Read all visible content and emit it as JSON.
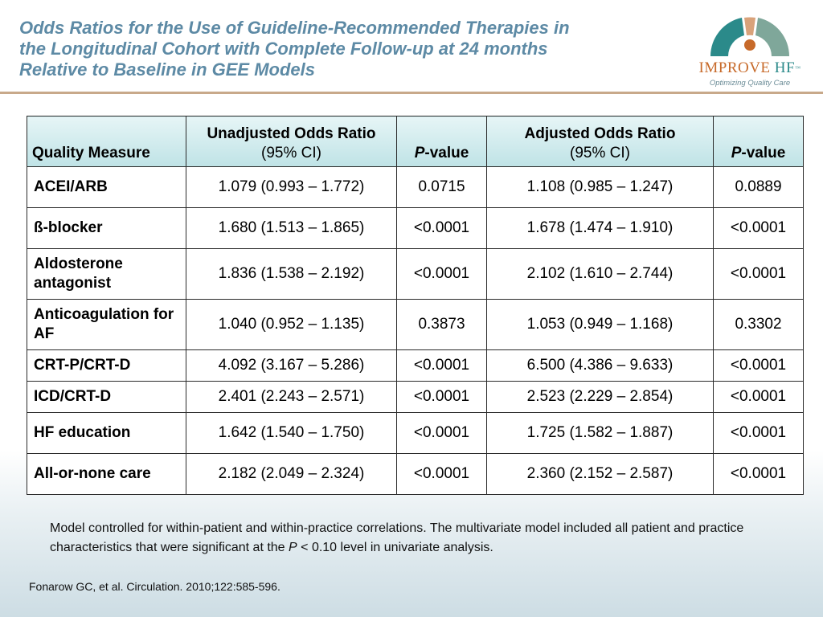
{
  "slide": {
    "title_lines": [
      "Odds Ratios for the Use of Guideline-Recommended Therapies in",
      "the Longitudinal Cohort with Complete Follow-up at 24 months",
      "Relative to Baseline in GEE Models"
    ],
    "title_color": "#5d8aa5",
    "rule_color": "#c8a98a"
  },
  "logo": {
    "brand_main": "IMPROVE",
    "brand_hf": "HF",
    "brand_tm": "™",
    "tagline": "Optimizing Quality Care",
    "colors": {
      "orange": "#c76a2a",
      "teal": "#2b8a8a",
      "green": "#7fa79a"
    }
  },
  "table": {
    "headers": {
      "measure": "Quality Measure",
      "unadj_bold": "Unadjusted Odds Ratio",
      "unadj_ci": "(95% CI)",
      "p_italic": "P",
      "p_rest": "-value",
      "adj_bold": "Adjusted Odds Ratio",
      "adj_ci": "(95% CI)"
    },
    "rows": [
      {
        "measure": "ACEI/ARB",
        "unadj": "1.079 (0.993 – 1.772)",
        "p1": "0.0715",
        "adj": "1.108 (0.985 – 1.247)",
        "p2": "0.0889"
      },
      {
        "measure": "ß-blocker",
        "unadj": "1.680 (1.513 – 1.865)",
        "p1": "<0.0001",
        "adj": "1.678 (1.474 – 1.910)",
        "p2": "<0.0001"
      },
      {
        "measure": "Aldosterone antagonist",
        "unadj": "1.836 (1.538 – 2.192)",
        "p1": "<0.0001",
        "adj": "2.102 (1.610 – 2.744)",
        "p2": "<0.0001"
      },
      {
        "measure": "Anticoagulation for AF",
        "unadj": "1.040 (0.952 – 1.135)",
        "p1": "0.3873",
        "adj": "1.053 (0.949 – 1.168)",
        "p2": "0.3302"
      },
      {
        "measure": "CRT-P/CRT-D",
        "unadj": "4.092 (3.167 – 5.286)",
        "p1": "<0.0001",
        "adj": "6.500 (4.386 – 9.633)",
        "p2": "<0.0001"
      },
      {
        "measure": "ICD/CRT-D",
        "unadj": "2.401 (2.243 – 2.571)",
        "p1": "<0.0001",
        "adj": "2.523 (2.229 – 2.854)",
        "p2": "<0.0001"
      },
      {
        "measure": "HF education",
        "unadj": "1.642 (1.540 – 1.750)",
        "p1": "<0.0001",
        "adj": "1.725 (1.582 – 1.887)",
        "p2": "<0.0001"
      },
      {
        "measure": "All-or-none care",
        "unadj": "2.182 (2.049 – 2.324)",
        "p1": "<0.0001",
        "adj": "2.360 (2.152 – 2.587)",
        "p2": "<0.0001"
      }
    ],
    "header_gradient": [
      "#e6f5f6",
      "#bfe3e6"
    ]
  },
  "footnote": {
    "part1": "Model controlled for within-patient and within-practice correlations. The multivariate model included all patient and practice characteristics that were significant at the ",
    "italic": "P",
    "part2": " < 0.10 level in univariate analysis."
  },
  "citation": "Fonarow GC, et al. Circulation. 2010;122:585-596."
}
